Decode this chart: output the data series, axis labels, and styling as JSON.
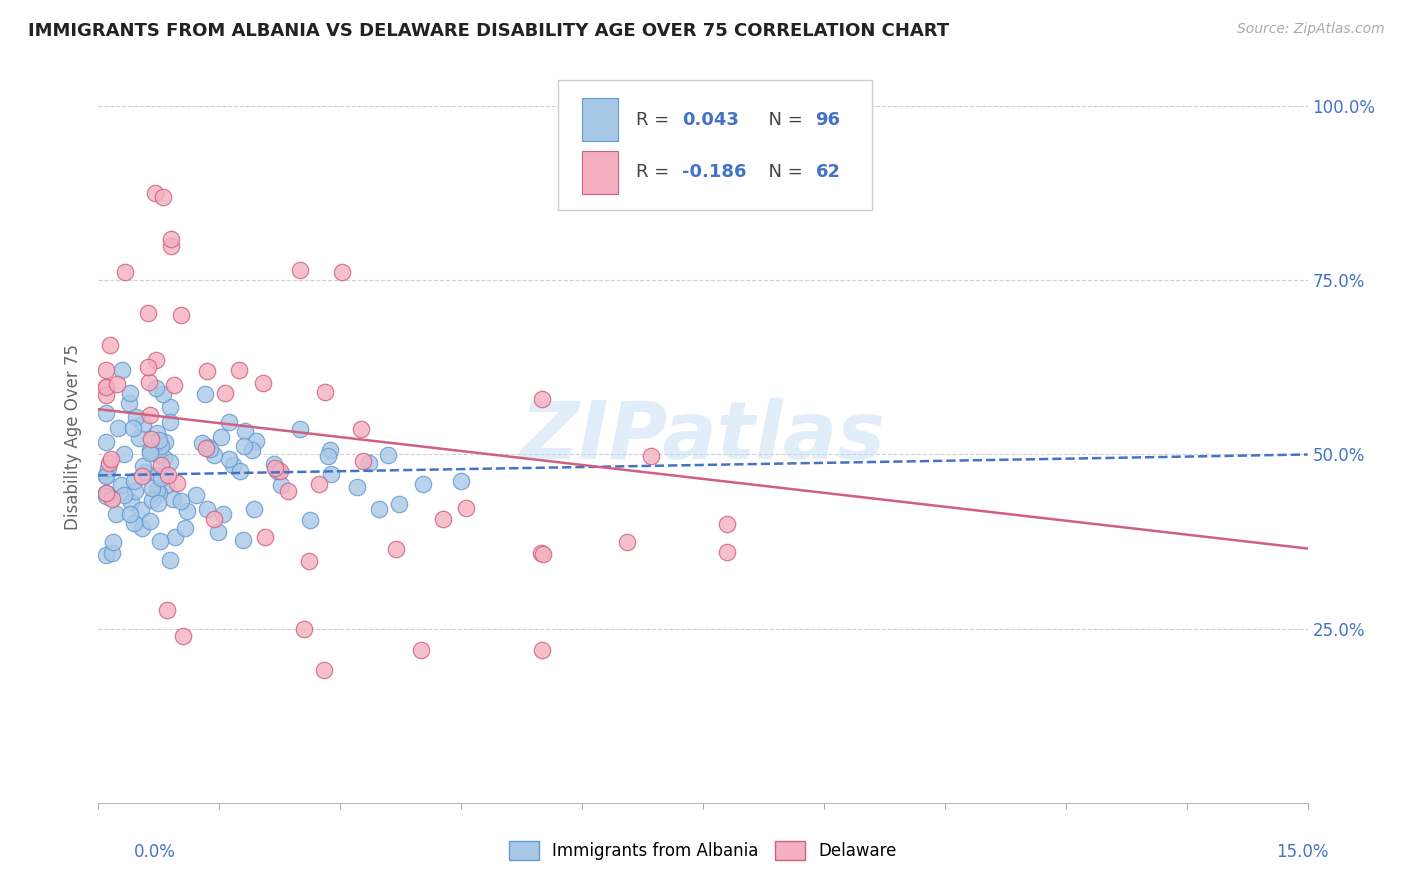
{
  "title": "IMMIGRANTS FROM ALBANIA VS DELAWARE DISABILITY AGE OVER 75 CORRELATION CHART",
  "source": "Source: ZipAtlas.com",
  "ylabel": "Disability Age Over 75",
  "legend_R1": "0.043",
  "legend_N1": "96",
  "legend_R2": "-0.186",
  "legend_N2": "62",
  "xlim": [
    0.0,
    0.15
  ],
  "ylim": [
    0.0,
    1.05
  ],
  "ytick_vals": [
    0.0,
    0.25,
    0.5,
    0.75,
    1.0
  ],
  "ytick_labels": [
    "",
    "25.0%",
    "50.0%",
    "75.0%",
    "100.0%"
  ],
  "scatter_albania_color": "#a8c8e8",
  "scatter_albania_edge": "#6699cc",
  "scatter_delaware_color": "#f4b0c0",
  "scatter_delaware_edge": "#d06080",
  "trendline_albania_color": "#4472c4",
  "trendline_delaware_color": "#d06080",
  "watermark": "ZIPatlas",
  "background_color": "#ffffff",
  "grid_color": "#d0d0d0",
  "title_color": "#222222",
  "source_color": "#aaaaaa",
  "axis_label_color": "#4472c4",
  "ylabel_color": "#666666"
}
